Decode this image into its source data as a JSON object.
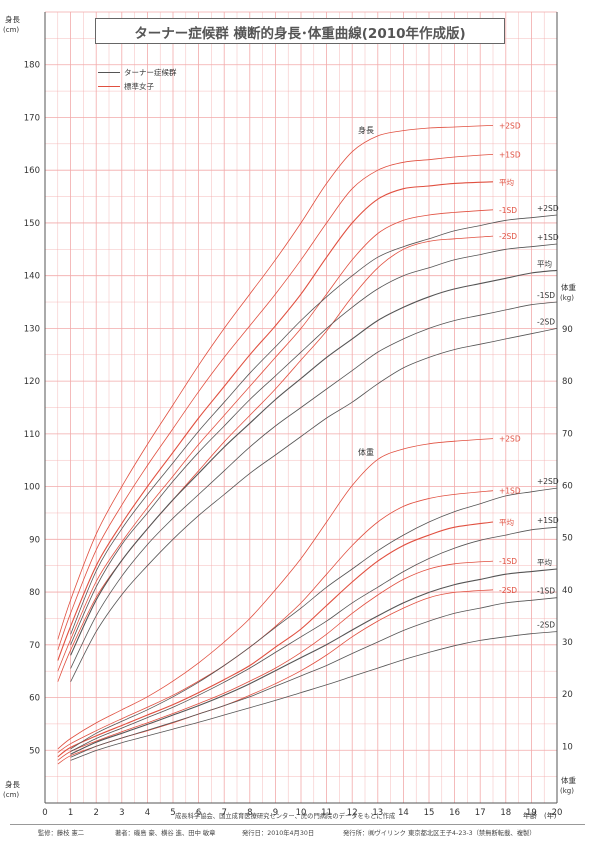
{
  "title": "ターナー症候群 横断的身長･体重曲線(2010年作成版)",
  "legend": [
    {
      "label": "ターナー症候群",
      "color": "#555555"
    },
    {
      "label": "標準女子",
      "color": "#e05040"
    }
  ],
  "axes": {
    "height_label": "身長",
    "height_unit": "(cm)",
    "weight_label": "体重",
    "weight_unit": "(kg)",
    "age_label": "年齢",
    "age_unit": "(年)"
  },
  "source": "成長科学協会、国立成育医療研究センター、虎の門病院のデータをもとに作成",
  "footer": {
    "supervisor": "監修：藤枝 憲二",
    "authors": "著者：磯島 豪、横谷 進、田中 敏章",
    "date": "発行日：2010年4月30日",
    "publisher": "発行所：㈱ヴイリンク 東京都北区王子4-23-3（禁無断転載、複製）"
  },
  "chart_data": {
    "type": "line",
    "x_label": "年齢 (年)",
    "x_range": [
      0,
      20
    ],
    "x_ticks": [
      0,
      1,
      2,
      3,
      4,
      5,
      6,
      7,
      8,
      9,
      10,
      11,
      12,
      13,
      14,
      15,
      16,
      17,
      18,
      19,
      20
    ],
    "y_left": {
      "label": "身長 (cm)",
      "range": [
        40,
        190
      ],
      "ticks": [
        50,
        60,
        70,
        80,
        90,
        100,
        110,
        120,
        130,
        140,
        150,
        160,
        170,
        180
      ]
    },
    "y_right": {
      "label": "体重 (kg)",
      "range": [
        0,
        90
      ],
      "ticks": [
        10,
        20,
        30,
        40,
        50,
        60,
        70,
        80,
        90
      ]
    },
    "grid": true,
    "colors": {
      "turner": "#555555",
      "standard": "#e05040",
      "grid": "#f2aaaa"
    },
    "section_labels": [
      "身長",
      "体重"
    ],
    "series": [
      {
        "group": "height",
        "kind": "standard",
        "label": "+2SD",
        "x": [
          0.5,
          1,
          2,
          3,
          4,
          5,
          6,
          7,
          8,
          9,
          10,
          11,
          12,
          13,
          14,
          15,
          16,
          17.5
        ],
        "y": [
          71,
          78.5,
          91,
          100,
          108,
          115.5,
          123,
          130,
          136.5,
          143,
          150,
          157.5,
          163.5,
          166.5,
          167.5,
          168,
          168.2,
          168.5
        ]
      },
      {
        "group": "height",
        "kind": "standard",
        "label": "+1SD",
        "x": [
          0.5,
          1,
          2,
          3,
          4,
          5,
          6,
          7,
          8,
          9,
          10,
          11,
          12,
          13,
          14,
          15,
          16,
          17.5
        ],
        "y": [
          69,
          76,
          88,
          96.5,
          104,
          111,
          118,
          124.5,
          130.5,
          136.5,
          143,
          150,
          156.5,
          160,
          161.5,
          162,
          162.5,
          163
        ]
      },
      {
        "group": "height",
        "kind": "standard",
        "label": "平均",
        "x": [
          0.5,
          1,
          2,
          3,
          4,
          5,
          6,
          7,
          8,
          9,
          10,
          11,
          12,
          13,
          14,
          15,
          16,
          17.5
        ],
        "y": [
          67,
          73.5,
          85,
          93,
          100,
          106.5,
          113,
          119,
          125,
          130.5,
          136.5,
          143.5,
          150,
          154.5,
          156.5,
          157,
          157.5,
          157.8
        ]
      },
      {
        "group": "height",
        "kind": "standard",
        "label": "-1SD",
        "x": [
          0.5,
          1,
          2,
          3,
          4,
          5,
          6,
          7,
          8,
          9,
          10,
          11,
          12,
          13,
          14,
          15,
          16,
          17.5
        ],
        "y": [
          65,
          71,
          82,
          89.5,
          96,
          102,
          108,
          113.5,
          119,
          124.5,
          130,
          136.5,
          143,
          148,
          150.5,
          151.5,
          152,
          152.5
        ]
      },
      {
        "group": "height",
        "kind": "standard",
        "label": "-2SD",
        "x": [
          0.5,
          1,
          2,
          3,
          4,
          5,
          6,
          7,
          8,
          9,
          10,
          11,
          12,
          13,
          14,
          15,
          16,
          17.5
        ],
        "y": [
          63,
          69,
          79,
          86,
          92,
          97.5,
          103,
          108.5,
          113.5,
          118.5,
          124,
          129.5,
          136,
          141.5,
          145,
          146.5,
          147,
          147.5
        ]
      },
      {
        "group": "height",
        "kind": "turner",
        "label": "+2SD",
        "x": [
          1,
          2,
          3,
          4,
          5,
          6,
          7,
          8,
          9,
          10,
          11,
          12,
          13,
          14,
          15,
          16,
          17,
          18,
          19,
          20
        ],
        "y": [
          72,
          84,
          92,
          98.5,
          104.5,
          110.5,
          116,
          121.5,
          126.5,
          131.5,
          136,
          140,
          143.5,
          145.5,
          147,
          148.5,
          149.5,
          150.5,
          151,
          151.5
        ]
      },
      {
        "group": "height",
        "kind": "turner",
        "label": "+1SD",
        "x": [
          1,
          2,
          3,
          4,
          5,
          6,
          7,
          8,
          9,
          10,
          11,
          12,
          13,
          14,
          15,
          16,
          17,
          18,
          19,
          20
        ],
        "y": [
          70,
          81,
          89,
          95,
          101,
          106.5,
          111.5,
          116.5,
          121,
          125.5,
          130,
          134,
          137.5,
          140,
          141.5,
          143,
          144,
          145,
          145.5,
          146
        ]
      },
      {
        "group": "height",
        "kind": "turner",
        "label": "平均",
        "x": [
          1,
          2,
          3,
          4,
          5,
          6,
          7,
          8,
          9,
          10,
          11,
          12,
          13,
          14,
          15,
          16,
          17,
          18,
          19,
          20
        ],
        "y": [
          68,
          78.5,
          86,
          92,
          97.5,
          102.5,
          107.5,
          112,
          116.5,
          120.5,
          124.5,
          128,
          131.5,
          134,
          136,
          137.5,
          138.5,
          139.5,
          140.5,
          141
        ]
      },
      {
        "group": "height",
        "kind": "turner",
        "label": "-1SD",
        "x": [
          1,
          2,
          3,
          4,
          5,
          6,
          7,
          8,
          9,
          10,
          11,
          12,
          13,
          14,
          15,
          16,
          17,
          18,
          19,
          20
        ],
        "y": [
          65.5,
          75.5,
          83,
          89,
          94,
          98.5,
          103,
          107.5,
          111.5,
          115,
          118.5,
          122,
          125.5,
          128,
          130,
          131.5,
          132.5,
          133.5,
          134.5,
          135
        ]
      },
      {
        "group": "height",
        "kind": "turner",
        "label": "-2SD",
        "x": [
          1,
          2,
          3,
          4,
          5,
          6,
          7,
          8,
          9,
          10,
          11,
          12,
          13,
          14,
          15,
          16,
          17,
          18,
          19,
          20
        ],
        "y": [
          63,
          72.5,
          79.5,
          85,
          90,
          94.5,
          98.5,
          102.5,
          106,
          109.5,
          113,
          116,
          119.5,
          122.5,
          124.5,
          126,
          127,
          128,
          129,
          130
        ]
      },
      {
        "group": "weight",
        "kind": "standard",
        "label": "+2SD",
        "x": [
          0.5,
          1,
          2,
          3,
          4,
          5,
          6,
          7,
          8,
          9,
          10,
          11,
          12,
          13,
          14,
          15,
          16,
          17.5
        ],
        "y": [
          9.5,
          11.5,
          14.5,
          17,
          19.5,
          22.5,
          26,
          30,
          34.5,
          40,
          46,
          53,
          60,
          65,
          67,
          68,
          68.5,
          69
        ]
      },
      {
        "group": "weight",
        "kind": "standard",
        "label": "+1SD",
        "x": [
          0.5,
          1,
          2,
          3,
          4,
          5,
          6,
          7,
          8,
          9,
          10,
          11,
          12,
          13,
          14,
          15,
          16,
          17.5
        ],
        "y": [
          8.8,
          10.5,
          13,
          15.3,
          17.5,
          19.8,
          22.5,
          25.5,
          29,
          33,
          37.5,
          43,
          48.5,
          53,
          56,
          57.5,
          58.3,
          59
        ]
      },
      {
        "group": "weight",
        "kind": "standard",
        "label": "平均",
        "x": [
          0.5,
          1,
          2,
          3,
          4,
          5,
          6,
          7,
          8,
          9,
          10,
          11,
          12,
          13,
          14,
          15,
          16,
          17.5
        ],
        "y": [
          8,
          9.8,
          12,
          14,
          16,
          18,
          20.3,
          22.8,
          25.5,
          29,
          32.5,
          37,
          41.5,
          45.5,
          48.5,
          50.5,
          52,
          53
        ]
      },
      {
        "group": "weight",
        "kind": "standard",
        "label": "-1SD",
        "x": [
          0.5,
          1,
          2,
          3,
          4,
          5,
          6,
          7,
          8,
          9,
          10,
          11,
          12,
          13,
          14,
          15,
          16,
          17.5
        ],
        "y": [
          7.3,
          9,
          11,
          12.8,
          14.5,
          16.3,
          18.2,
          20.2,
          22.5,
          25,
          28,
          31.5,
          35.5,
          39,
          42,
          44,
          45,
          45.5
        ]
      },
      {
        "group": "weight",
        "kind": "standard",
        "label": "-2SD",
        "x": [
          0.5,
          1,
          2,
          3,
          4,
          5,
          6,
          7,
          8,
          9,
          10,
          11,
          12,
          13,
          14,
          15,
          16,
          17.5
        ],
        "y": [
          6.6,
          8.2,
          10,
          11.6,
          13,
          14.5,
          16.2,
          17.8,
          19.8,
          22,
          24.5,
          27.5,
          31,
          34,
          36.5,
          38.5,
          39.5,
          40
        ]
      },
      {
        "group": "weight",
        "kind": "turner",
        "label": "+2SD",
        "x": [
          1,
          2,
          3,
          4,
          5,
          6,
          7,
          8,
          9,
          10,
          11,
          12,
          13,
          14,
          15,
          16,
          17,
          18,
          19,
          20
        ],
        "y": [
          9.5,
          12.5,
          14.8,
          17,
          19.5,
          22.3,
          25.5,
          29,
          32.8,
          36.5,
          40.5,
          44,
          47.5,
          50.5,
          53,
          55,
          56.5,
          58,
          58.8,
          59.5
        ]
      },
      {
        "group": "weight",
        "kind": "turner",
        "label": "+1SD",
        "x": [
          1,
          2,
          3,
          4,
          5,
          6,
          7,
          8,
          9,
          10,
          11,
          12,
          13,
          14,
          15,
          16,
          17,
          18,
          19,
          20
        ],
        "y": [
          9,
          11.5,
          13.5,
          15.5,
          17.5,
          19.8,
          22.3,
          25,
          28,
          31,
          34,
          37.5,
          40.5,
          43.5,
          46,
          48,
          49.5,
          50.5,
          51.5,
          52
        ]
      },
      {
        "group": "weight",
        "kind": "turner",
        "label": "平均",
        "x": [
          1,
          2,
          3,
          4,
          5,
          6,
          7,
          8,
          9,
          10,
          11,
          12,
          13,
          14,
          15,
          16,
          17,
          18,
          19,
          20
        ],
        "y": [
          8.5,
          10.8,
          12.5,
          14.2,
          16,
          17.8,
          19.8,
          22,
          24.5,
          27,
          29.5,
          32.3,
          35,
          37.5,
          39.5,
          41,
          42,
          43,
          43.5,
          44
        ]
      },
      {
        "group": "weight",
        "kind": "turner",
        "label": "-1SD",
        "x": [
          1,
          2,
          3,
          4,
          5,
          6,
          7,
          8,
          9,
          10,
          11,
          12,
          13,
          14,
          15,
          16,
          17,
          18,
          19,
          20
        ],
        "y": [
          7.9,
          10,
          11.6,
          13.1,
          14.6,
          16.2,
          17.8,
          19.5,
          21.5,
          23.5,
          25.5,
          27.8,
          30,
          32.2,
          34,
          35.5,
          36.5,
          37.5,
          38,
          38.5
        ]
      },
      {
        "group": "weight",
        "kind": "turner",
        "label": "-2SD",
        "x": [
          1,
          2,
          3,
          4,
          5,
          6,
          7,
          8,
          9,
          10,
          11,
          12,
          13,
          14,
          15,
          16,
          17,
          18,
          19,
          20
        ],
        "y": [
          7.3,
          9.2,
          10.7,
          12,
          13.3,
          14.6,
          16,
          17.4,
          18.8,
          20.3,
          21.8,
          23.4,
          25,
          26.6,
          28,
          29.3,
          30.3,
          31,
          31.6,
          32
        ]
      }
    ]
  }
}
